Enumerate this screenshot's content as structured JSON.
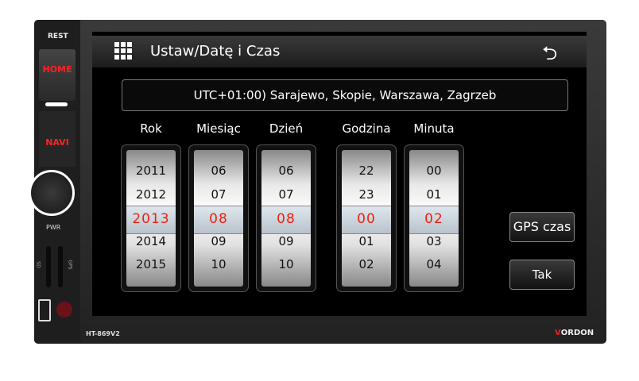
{
  "device": {
    "rest": "REST",
    "home": "HOME",
    "navi": "NAVI",
    "pwr": "PWR",
    "sd": "SD",
    "gps": "GPS",
    "model": "HT-869V2",
    "brand_mark": "V",
    "brand_rest": "ORDON"
  },
  "header": {
    "title": "Ustaw/Datę i Czas",
    "menu_icon": "grid-icon",
    "back_icon": "back-arrow-icon"
  },
  "timezone": "UTC+01:00) Sarajewo, Skopie, Warszawa, Zagrzeb",
  "wheels": [
    {
      "label": "Rok",
      "values": [
        "2011",
        "2012",
        "2013",
        "2014",
        "2015"
      ]
    },
    {
      "label": "Miesiąc",
      "values": [
        "06",
        "07",
        "08",
        "09",
        "10"
      ]
    },
    {
      "label": "Dzień",
      "values": [
        "06",
        "07",
        "08",
        "09",
        "10"
      ]
    },
    {
      "label": "Godzina",
      "values": [
        "22",
        "23",
        "00",
        "01",
        "02"
      ]
    },
    {
      "label": "Minuta",
      "values": [
        "00",
        "01",
        "02",
        "03",
        "04"
      ]
    }
  ],
  "buttons": {
    "gps": "GPS czas",
    "ok": "Tak"
  },
  "colors": {
    "selected": "#e21",
    "brand": "#e22"
  }
}
